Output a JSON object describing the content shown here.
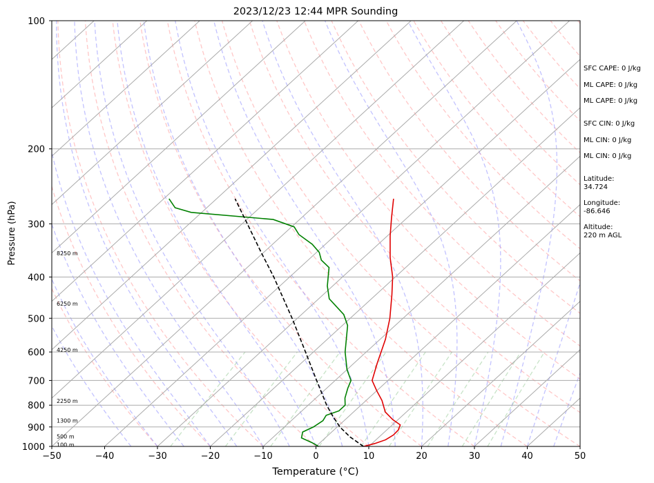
{
  "chart_data": {
    "type": "line",
    "title": "2023/12/23 12:44 MPR Sounding",
    "xlabel": "Temperature (°C)",
    "ylabel": "Pressure (hPa)",
    "xlim": [
      -50,
      50
    ],
    "ylim": [
      1000,
      100
    ],
    "y_scale": "log",
    "skew": true,
    "grid": true,
    "x_ticks": [
      -50,
      -40,
      -30,
      -20,
      -10,
      0,
      10,
      20,
      30,
      40,
      50
    ],
    "y_ticks": [
      1000,
      900,
      800,
      700,
      600,
      500,
      400,
      300,
      200,
      100
    ],
    "series": [
      {
        "color": "#e00000",
        "style": "solid",
        "points": [
          {
            "p": 1000,
            "t": 9.0
          },
          {
            "p": 985,
            "t": 10.5
          },
          {
            "p": 965,
            "t": 11.8
          },
          {
            "p": 940,
            "t": 12.3
          },
          {
            "p": 915,
            "t": 12.2
          },
          {
            "p": 890,
            "t": 11.5
          },
          {
            "p": 865,
            "t": 9.0
          },
          {
            "p": 830,
            "t": 6.0
          },
          {
            "p": 780,
            "t": 3.0
          },
          {
            "p": 740,
            "t": 0.0
          },
          {
            "p": 700,
            "t": -3.0
          },
          {
            "p": 640,
            "t": -5.5
          },
          {
            "p": 560,
            "t": -9.0
          },
          {
            "p": 500,
            "t": -12.5
          },
          {
            "p": 440,
            "t": -17.0
          },
          {
            "p": 400,
            "t": -20.5
          },
          {
            "p": 360,
            "t": -25.0
          },
          {
            "p": 320,
            "t": -29.5
          },
          {
            "p": 290,
            "t": -33.0
          },
          {
            "p": 262,
            "t": -36.5
          }
        ]
      },
      {
        "color": "#008000",
        "style": "solid",
        "points": [
          {
            "p": 1000,
            "t": 0.5
          },
          {
            "p": 980,
            "t": -1.5
          },
          {
            "p": 955,
            "t": -4.5
          },
          {
            "p": 925,
            "t": -5.5
          },
          {
            "p": 900,
            "t": -4.5
          },
          {
            "p": 870,
            "t": -4.0
          },
          {
            "p": 845,
            "t": -4.5
          },
          {
            "p": 825,
            "t": -3.0
          },
          {
            "p": 800,
            "t": -3.0
          },
          {
            "p": 770,
            "t": -4.5
          },
          {
            "p": 730,
            "t": -6.0
          },
          {
            "p": 700,
            "t": -7.0
          },
          {
            "p": 660,
            "t": -10.0
          },
          {
            "p": 600,
            "t": -14.0
          },
          {
            "p": 520,
            "t": -19.0
          },
          {
            "p": 490,
            "t": -22.0
          },
          {
            "p": 450,
            "t": -28.0
          },
          {
            "p": 420,
            "t": -31.0
          },
          {
            "p": 380,
            "t": -34.5
          },
          {
            "p": 365,
            "t": -37.5
          },
          {
            "p": 350,
            "t": -39.5
          },
          {
            "p": 335,
            "t": -42.5
          },
          {
            "p": 318,
            "t": -47.0
          },
          {
            "p": 305,
            "t": -49.5
          },
          {
            "p": 293,
            "t": -55.0
          },
          {
            "p": 282,
            "t": -72.0
          },
          {
            "p": 275,
            "t": -76.0
          },
          {
            "p": 262,
            "t": -79.0
          }
        ]
      },
      {
        "color": "#000000",
        "style": "dashed",
        "points": [
          {
            "p": 1000,
            "t": 9.0
          },
          {
            "p": 950,
            "t": 4.5
          },
          {
            "p": 900,
            "t": 0.5
          },
          {
            "p": 850,
            "t": -3.0
          },
          {
            "p": 800,
            "t": -6.5
          },
          {
            "p": 700,
            "t": -13.5
          },
          {
            "p": 600,
            "t": -21.5
          },
          {
            "p": 500,
            "t": -31.0
          },
          {
            "p": 400,
            "t": -43.0
          },
          {
            "p": 350,
            "t": -50.5
          },
          {
            "p": 300,
            "t": -59.0
          },
          {
            "p": 262,
            "t": -66.5
          }
        ]
      }
    ],
    "height_labels": [
      {
        "text": "8250 m",
        "p": 352
      },
      {
        "text": "6250 m",
        "p": 462
      },
      {
        "text": "4250 m",
        "p": 593
      },
      {
        "text": "2250 m",
        "p": 781
      },
      {
        "text": "1300 m",
        "p": 870
      },
      {
        "text": "500 m",
        "p": 948
      },
      {
        "text": "100 m",
        "p": 990
      }
    ],
    "annotations": [
      "SFC CAPE: 0 J/kg",
      "ML CAPE: 0 J/kg",
      "ML CAPE: 0 J/kg",
      "SFC CIN: 0 J/kg",
      "ML CIN: 0 J/kg",
      "ML CIN: 0 J/kg",
      "Latitude:",
      "34.724",
      "Longitude:",
      "-86.646",
      "Altitude:",
      "220 m AGL"
    ],
    "background_colors": {
      "isotherm": "#aaaaaa",
      "dry_adiabat": "#ff9999",
      "moist_adiabat": "#9999ff",
      "mixing_ratio": "#99cc99",
      "isobar": "#aaaaaa"
    }
  }
}
